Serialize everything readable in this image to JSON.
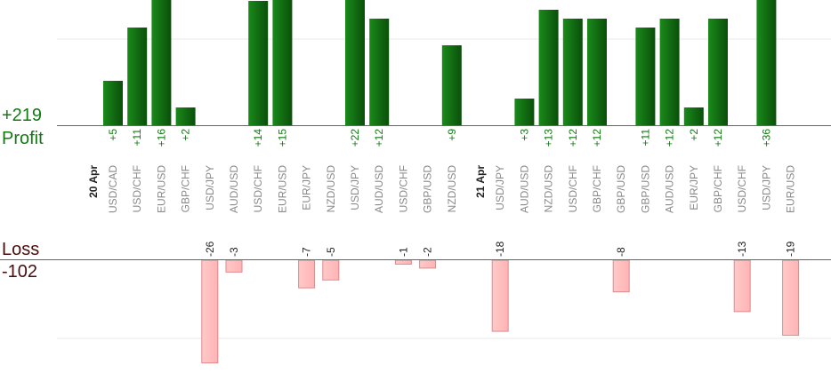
{
  "summary": {
    "profit_value": "+219",
    "profit_label": "Profit",
    "loss_label": "Loss",
    "loss_value": "-102"
  },
  "colors": {
    "profit_bar": "#0f6e0f",
    "profit_bar_dark": "#0a4f0a",
    "loss_bar": "#ffb3b3",
    "loss_bar_edge": "#e08a8a",
    "axis": "#666666",
    "grid": "#e8e8e8"
  },
  "chart_data": {
    "type": "bar",
    "categories": [
      {
        "date": "20 Apr",
        "label": "USD/CAD",
        "value": 5
      },
      {
        "date": "",
        "label": "USD/CHF",
        "value": 11
      },
      {
        "date": "",
        "label": "EUR/USD",
        "value": 16
      },
      {
        "date": "",
        "label": "GBP/CHF",
        "value": 2
      },
      {
        "date": "",
        "label": "USD/JPY",
        "value": -26
      },
      {
        "date": "",
        "label": "AUD/USD",
        "value": -3
      },
      {
        "date": "",
        "label": "USD/CHF",
        "value": 14
      },
      {
        "date": "",
        "label": "EUR/USD",
        "value": 15
      },
      {
        "date": "",
        "label": "EUR/JPY",
        "value": -7
      },
      {
        "date": "",
        "label": "NZD/USD",
        "value": -5
      },
      {
        "date": "",
        "label": "USD/JPY",
        "value": 22
      },
      {
        "date": "",
        "label": "AUD/USD",
        "value": 12
      },
      {
        "date": "",
        "label": "USD/CHF",
        "value": -1
      },
      {
        "date": "",
        "label": "GBP/USD",
        "value": -2
      },
      {
        "date": "",
        "label": "NZD/USD",
        "value": 9
      },
      {
        "date": "",
        "label": "",
        "value": 0
      },
      {
        "date": "21 Apr",
        "label": "USD/JPY",
        "value": -18
      },
      {
        "date": "",
        "label": "AUD/USD",
        "value": 3
      },
      {
        "date": "",
        "label": "NZD/USD",
        "value": 13
      },
      {
        "date": "",
        "label": "USD/CHF",
        "value": 12
      },
      {
        "date": "",
        "label": "GBP/CHF",
        "value": 12
      },
      {
        "date": "",
        "label": "GBP/USD",
        "value": -8
      },
      {
        "date": "",
        "label": "GBP/USD",
        "value": 11
      },
      {
        "date": "",
        "label": "AUD/USD",
        "value": 12
      },
      {
        "date": "",
        "label": "EUR/JPY",
        "value": 2
      },
      {
        "date": "",
        "label": "GBP/CHF",
        "value": 12
      },
      {
        "date": "",
        "label": "USD/CHF",
        "value": -13
      },
      {
        "date": "",
        "label": "USD/JPY",
        "value": 36
      },
      {
        "date": "",
        "label": "EUR/USD",
        "value": -19
      }
    ],
    "value_labels": [
      "+5",
      "+11",
      "+16",
      "+2",
      "-26",
      "-3",
      "+14",
      "+15",
      "-7",
      "-5",
      "+22",
      "+12",
      "-1",
      "-2",
      "+9",
      "",
      "-18",
      "+3",
      "+13",
      "+12",
      "+12",
      "-8",
      "+11",
      "+12",
      "+2",
      "+12",
      "-13",
      "+36",
      "-19"
    ],
    "profit_range": [
      0,
      14
    ],
    "loss_range": [
      0,
      13
    ],
    "grid": true
  }
}
